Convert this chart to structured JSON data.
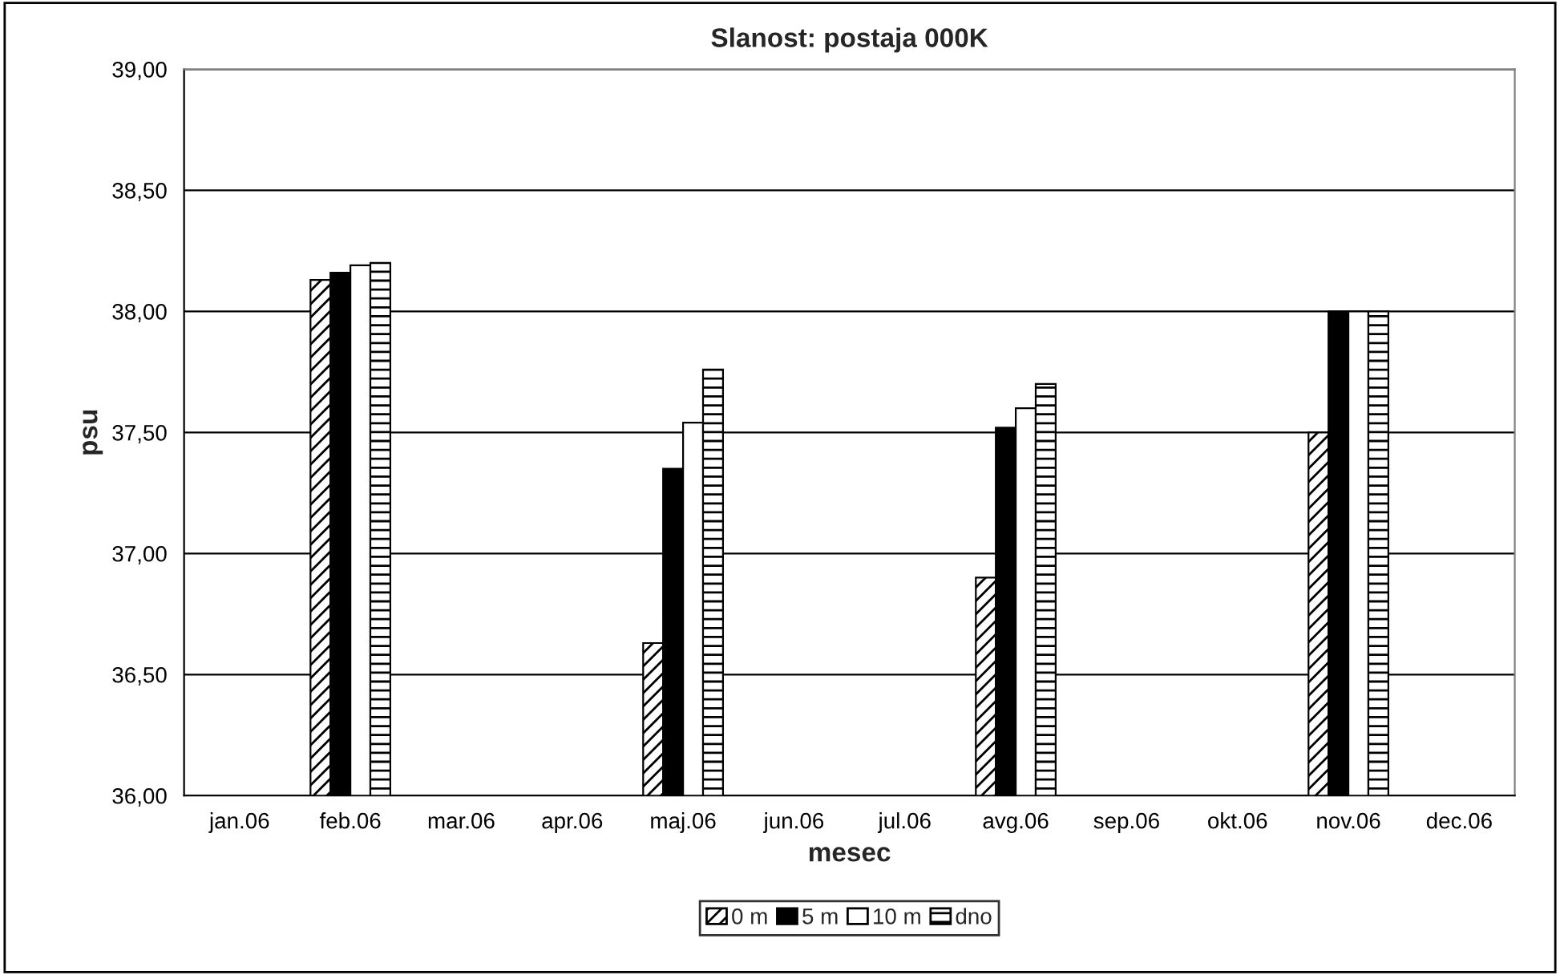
{
  "chart_data": {
    "type": "bar",
    "title": "Slanost: postaja 000K",
    "xlabel": "mesec",
    "ylabel": "psu",
    "categories": [
      "jan.06",
      "feb.06",
      "mar.06",
      "apr.06",
      "maj.06",
      "jun.06",
      "jul.06",
      "avg.06",
      "sep.06",
      "okt.06",
      "nov.06",
      "dec.06"
    ],
    "series": [
      {
        "name": "0 m",
        "color": "#000000",
        "values": [
          null,
          38.13,
          null,
          null,
          36.63,
          null,
          null,
          36.9,
          null,
          null,
          37.5,
          null
        ]
      },
      {
        "name": "5 m",
        "color": "#000000",
        "values": [
          null,
          38.16,
          null,
          null,
          37.35,
          null,
          null,
          37.52,
          null,
          null,
          38.0,
          null
        ]
      },
      {
        "name": "10 m",
        "color": "#ffffff",
        "values": [
          null,
          38.19,
          null,
          null,
          37.54,
          null,
          null,
          37.6,
          null,
          null,
          38.0,
          null
        ]
      },
      {
        "name": "dno",
        "color": "#000000",
        "values": [
          null,
          38.2,
          null,
          null,
          37.76,
          null,
          null,
          37.7,
          null,
          null,
          38.0,
          null
        ]
      }
    ],
    "ylim": [
      36,
      39
    ],
    "yticks": [
      {
        "value": 36,
        "label": "36,00"
      },
      {
        "value": 36.5,
        "label": "36,50"
      },
      {
        "value": 37,
        "label": "37,00"
      },
      {
        "value": 37.5,
        "label": "37,50"
      },
      {
        "value": 38,
        "label": "38,00"
      },
      {
        "value": 38.5,
        "label": "38,50"
      },
      {
        "value": 39,
        "label": "39,00"
      }
    ],
    "grid": "y",
    "legend": "bottom"
  }
}
